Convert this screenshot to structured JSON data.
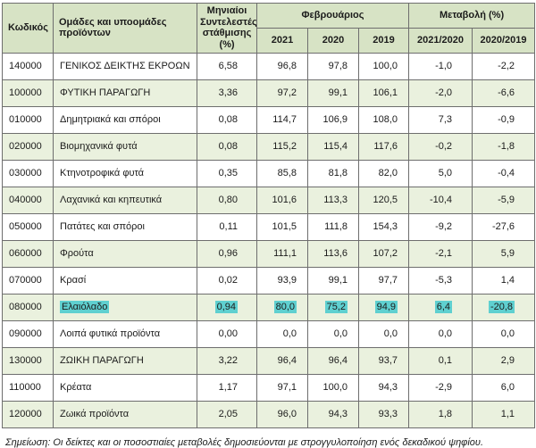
{
  "table": {
    "headers": {
      "code": "Κωδικός",
      "groups": "Ομάδες και υποομάδες προϊόντων",
      "weights": "Μηνιαίοι Συντελεστές στάθμισης (%)",
      "february": "Φεβρουάριος",
      "change": "Μεταβολή (%)",
      "years": [
        "2021",
        "2020",
        "2019"
      ],
      "change_cols": [
        "2021/2020",
        "2020/2019"
      ]
    },
    "rows": [
      {
        "code": "140000",
        "name": "ΓΕΝΙΚΟΣ ΔΕΙΚΤΗΣ ΕΚΡΟΩΝ",
        "weight": "6,58",
        "y2021": "96,8",
        "y2020": "97,8",
        "y2019": "100,0",
        "c2120": "-1,0",
        "c2019": "-2,2",
        "highlight": false
      },
      {
        "code": "100000",
        "name": "ΦΥΤΙΚΗ ΠΑΡΑΓΩΓΗ",
        "weight": "3,36",
        "y2021": "97,2",
        "y2020": "99,1",
        "y2019": "106,1",
        "c2120": "-2,0",
        "c2019": "-6,6",
        "highlight": false
      },
      {
        "code": "010000",
        "name": "Δημητριακά και σπόροι",
        "weight": "0,08",
        "y2021": "114,7",
        "y2020": "106,9",
        "y2019": "108,0",
        "c2120": "7,3",
        "c2019": "-0,9",
        "highlight": false
      },
      {
        "code": "020000",
        "name": "Βιομηχανικά φυτά",
        "weight": "0,08",
        "y2021": "115,2",
        "y2020": "115,4",
        "y2019": "117,6",
        "c2120": "-0,2",
        "c2019": "-1,8",
        "highlight": false
      },
      {
        "code": "030000",
        "name": "Κτηνοτροφικά φυτά",
        "weight": "0,35",
        "y2021": "85,8",
        "y2020": "81,8",
        "y2019": "82,0",
        "c2120": "5,0",
        "c2019": "-0,4",
        "highlight": false
      },
      {
        "code": "040000",
        "name": "Λαχανικά και κηπευτικά",
        "weight": "0,80",
        "y2021": "101,6",
        "y2020": "113,3",
        "y2019": "120,5",
        "c2120": "-10,4",
        "c2019": "-5,9",
        "highlight": false
      },
      {
        "code": "050000",
        "name": "Πατάτες και σπόροι",
        "weight": "0,11",
        "y2021": "101,5",
        "y2020": "111,8",
        "y2019": "154,3",
        "c2120": "-9,2",
        "c2019": "-27,6",
        "highlight": false
      },
      {
        "code": "060000",
        "name": "Φρούτα",
        "weight": "0,96",
        "y2021": "111,1",
        "y2020": "113,6",
        "y2019": "107,2",
        "c2120": "-2,1",
        "c2019": "5,9",
        "highlight": false
      },
      {
        "code": "070000",
        "name": "Κρασί",
        "weight": "0,02",
        "y2021": "93,9",
        "y2020": "99,1",
        "y2019": "97,7",
        "c2120": "-5,3",
        "c2019": "1,4",
        "highlight": false
      },
      {
        "code": "080000",
        "name": "Ελαιόλαδο",
        "weight": "0,94",
        "y2021": "80,0",
        "y2020": "75,2",
        "y2019": "94,9",
        "c2120": "6,4",
        "c2019": "-20,8",
        "highlight": true
      },
      {
        "code": "090000",
        "name": "Λοιπά φυτικά προϊόντα",
        "weight": "0,00",
        "y2021": "0,0",
        "y2020": "0,0",
        "y2019": "0,0",
        "c2120": "0,0",
        "c2019": "0,0",
        "highlight": false
      },
      {
        "code": "130000",
        "name": "ΖΩΙΚΗ ΠΑΡΑΓΩΓΗ",
        "weight": "3,22",
        "y2021": "96,4",
        "y2020": "96,4",
        "y2019": "93,7",
        "c2120": "0,1",
        "c2019": "2,9",
        "highlight": false
      },
      {
        "code": "110000",
        "name": "Κρέατα",
        "weight": "1,17",
        "y2021": "97,1",
        "y2020": "100,0",
        "y2019": "94,3",
        "c2120": "-2,9",
        "c2019": "6,0",
        "highlight": false
      },
      {
        "code": "120000",
        "name": "Ζωικά προϊόντα",
        "weight": "2,05",
        "y2021": "96,0",
        "y2020": "94,3",
        "y2019": "93,3",
        "c2120": "1,8",
        "c2019": "1,1",
        "highlight": false
      }
    ]
  },
  "colors": {
    "header_bg": "#d7e3c5",
    "shaded_row_bg": "#eaf1de",
    "highlight_bg": "#5fd0d0",
    "border": "#6e6e6e"
  },
  "footnote": "Σημείωση: Οι δείκτες και οι ποσοστιαίες μεταβολές δημοσιεύονται με στρογγυλοποίηση ενός δεκαδικού ψηφίου."
}
